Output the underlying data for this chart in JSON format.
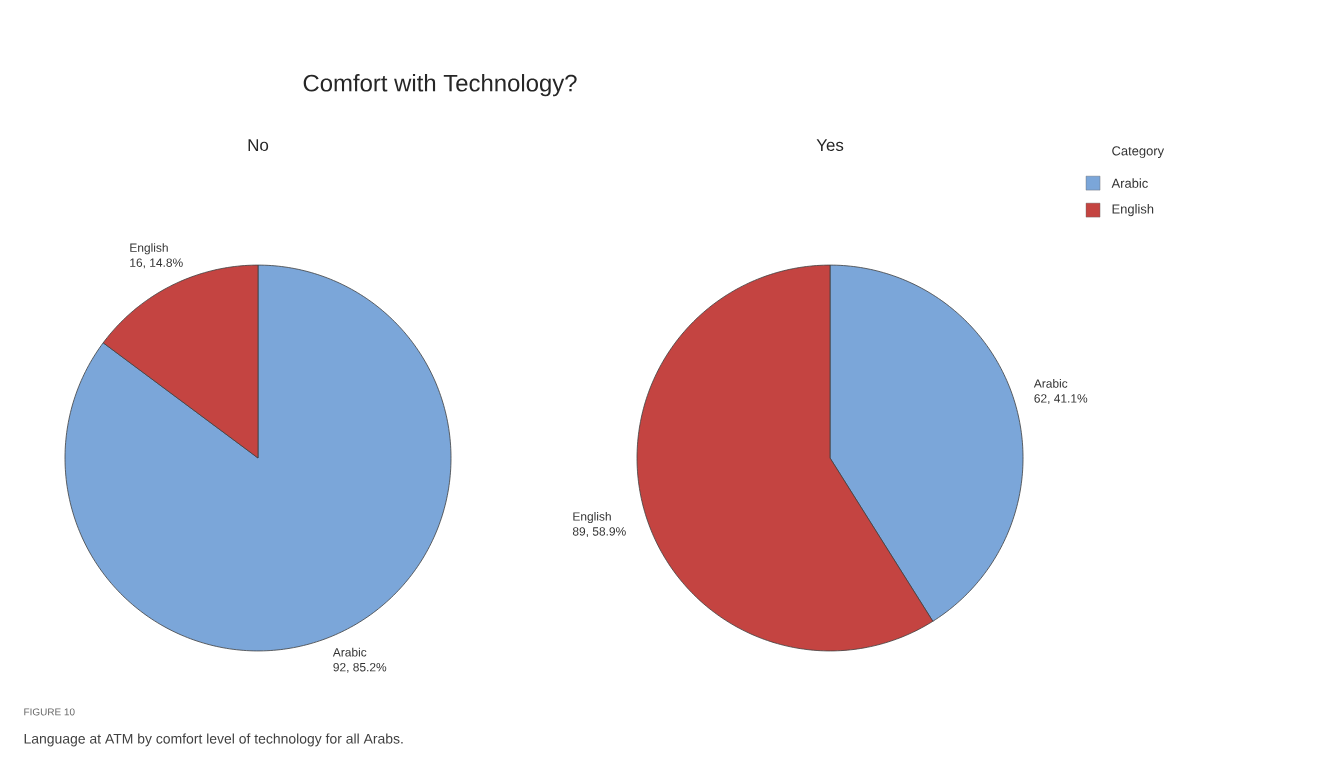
{
  "chart_data": [
    {
      "type": "pie",
      "title": "Comfort with Technology?",
      "subtitle": "No",
      "categories": [
        "Arabic",
        "English"
      ],
      "values": [
        92,
        16
      ],
      "colors": [
        "#7ba6d9",
        "#c44441"
      ],
      "value_labels": [
        "92, 85.2%",
        "16, 14.8%"
      ],
      "annotations": [
        "FIGURE 10",
        "Language at ATM by comfort level of technology for all Arabs."
      ]
    },
    {
      "type": "pie",
      "subtitle": "Yes",
      "categories": [
        "Arabic",
        "English"
      ],
      "values": [
        62,
        89
      ],
      "colors": [
        "#7ba6d9",
        "#c44441"
      ],
      "value_labels": [
        "62, 41.1%",
        "89, 58.9%"
      ],
      "legend": "right",
      "legend_title": "Category"
    }
  ]
}
